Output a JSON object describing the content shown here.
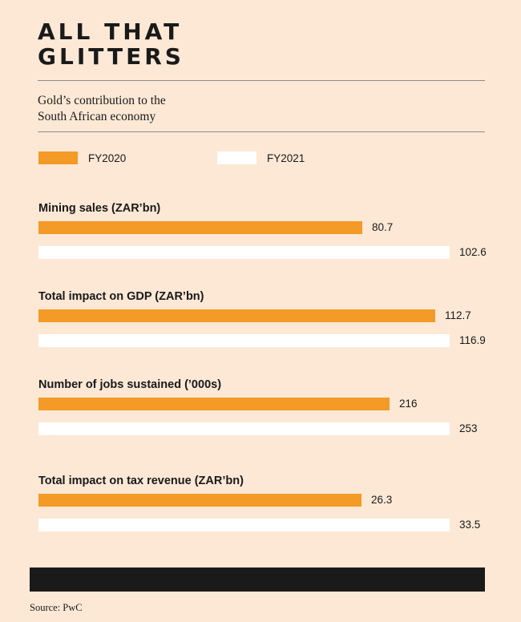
{
  "header": {
    "title_line1": "ALL THAT",
    "title_line2": "GLITTERS",
    "subtitle_line1": "Gold’s contribution to the",
    "subtitle_line2": "South African economy"
  },
  "colors": {
    "background": "#fce8d5",
    "fy2020": "#f39a27",
    "fy2021": "#ffffff",
    "footer_band": "#1a1a1a"
  },
  "chart_data": {
    "type": "bar",
    "orientation": "horizontal",
    "legend_position": "top-left",
    "series_names": [
      "FY2020",
      "FY2021"
    ],
    "groups": [
      {
        "title": "Mining sales (ZAR’bn)",
        "values": [
          80.7,
          102.6
        ],
        "labels": [
          "80.7",
          "102.6"
        ]
      },
      {
        "title": "Total impact on GDP (ZAR’bn)",
        "values": [
          112.7,
          116.9
        ],
        "labels": [
          "112.7",
          "116.9"
        ]
      },
      {
        "title": "Number of jobs sustained (’000s)",
        "values": [
          216,
          253
        ],
        "labels": [
          "216",
          "253"
        ]
      },
      {
        "title": "Total impact on tax revenue (ZAR’bn)",
        "values": [
          26.3,
          33.5
        ],
        "labels": [
          "26.3",
          "33.5"
        ]
      }
    ]
  },
  "footer": {
    "source": "Source: PwC"
  }
}
